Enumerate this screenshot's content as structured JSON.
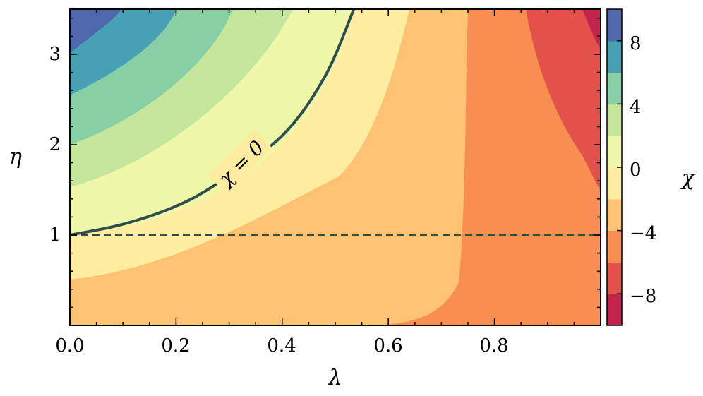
{
  "chart_data": {
    "type": "contour",
    "title": "",
    "xlabel": "λ",
    "ylabel": "η",
    "colorbar_label": "χ",
    "xlim": [
      0,
      1
    ],
    "ylim": [
      0,
      3.5
    ],
    "xticks": [
      0.0,
      0.2,
      0.4,
      0.6,
      0.8
    ],
    "xtick_labels": [
      "0.0",
      "0.2",
      "0.4",
      "0.6",
      "0.8"
    ],
    "yticks": [
      1,
      2,
      3
    ],
    "ytick_labels": [
      "1",
      "2",
      "3"
    ],
    "grid": false,
    "colorbar_ticks": [
      8,
      4,
      0,
      -4,
      -8
    ],
    "colorbar_tick_labels": [
      "8",
      "4",
      "0",
      "−4",
      "−8"
    ],
    "levels": [
      {
        "range": [
          -10,
          -8
        ],
        "color": "#c2244b"
      },
      {
        "range": [
          -8,
          -6
        ],
        "color": "#e2514a"
      },
      {
        "range": [
          -6,
          -4
        ],
        "color": "#f98e52"
      },
      {
        "range": [
          -4,
          -2
        ],
        "color": "#fdc373"
      },
      {
        "range": [
          -2,
          0
        ],
        "color": "#feeda1"
      },
      {
        "range": [
          0,
          2
        ],
        "color": "#eff8a9"
      },
      {
        "range": [
          2,
          4
        ],
        "color": "#c4e79b"
      },
      {
        "range": [
          4,
          6
        ],
        "color": "#87cfa4"
      },
      {
        "range": [
          6,
          8
        ],
        "color": "#47a0b3"
      },
      {
        "range": [
          8,
          10
        ],
        "color": "#4e67ad"
      }
    ],
    "contour_line": {
      "level": 0,
      "label": "χ = 0",
      "color": "#2f4f4f",
      "points": [
        [
          0.0,
          1.0
        ],
        [
          0.1,
          1.12
        ],
        [
          0.2,
          1.32
        ],
        [
          0.28,
          1.58
        ],
        [
          0.4,
          2.1
        ],
        [
          0.48,
          2.75
        ],
        [
          0.535,
          3.5
        ]
      ]
    },
    "reference_line": {
      "y": 1.0,
      "style": "dashed",
      "color": "#2f4f4f"
    }
  }
}
